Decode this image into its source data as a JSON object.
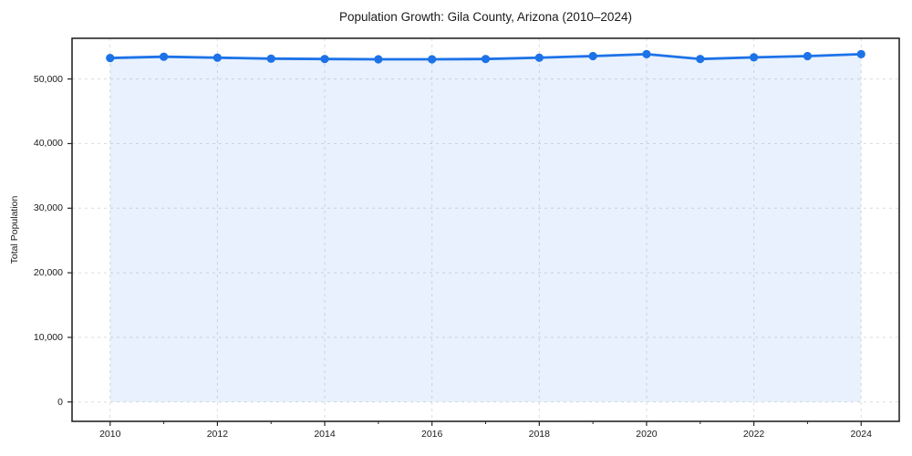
{
  "chart_data": {
    "type": "line",
    "title": "Population Growth: Gila County, Arizona (2010–2024)",
    "xlabel": "",
    "ylabel": "Total Population",
    "x": [
      2010,
      2011,
      2012,
      2013,
      2014,
      2015,
      2016,
      2017,
      2018,
      2019,
      2020,
      2021,
      2022,
      2023,
      2024
    ],
    "series": [
      {
        "name": "Total Population",
        "values": [
          53250,
          53450,
          53300,
          53150,
          53100,
          53050,
          53050,
          53100,
          53300,
          53550,
          53850,
          53100,
          53350,
          53550,
          53850
        ]
      }
    ],
    "x_tick_values": [
      2010,
      2012,
      2014,
      2016,
      2018,
      2020,
      2022,
      2024
    ],
    "x_tick_labels": [
      "2010",
      "2012",
      "2014",
      "2016",
      "2018",
      "2020",
      "2022",
      "2024"
    ],
    "x_minor_tick_values": [
      2011,
      2013,
      2015,
      2017,
      2019,
      2021,
      2023
    ],
    "y_tick_values": [
      0,
      10000,
      20000,
      30000,
      40000,
      50000
    ],
    "y_tick_labels": [
      "0",
      "10,000",
      "20,000",
      "30,000",
      "40,000",
      "50,000"
    ],
    "xlim": [
      2009.29,
      2024.71
    ],
    "ylim": [
      -3000,
      56300
    ],
    "grid": "dashed",
    "legend": "none",
    "marker": "circle",
    "fill_to_zero": true,
    "colors": {
      "line": "#1d72e8",
      "fill": "rgba(29,114,232,0.10)",
      "grid": "#dcdcdc",
      "axis": "#262626",
      "text": "#1a1a1a"
    }
  }
}
